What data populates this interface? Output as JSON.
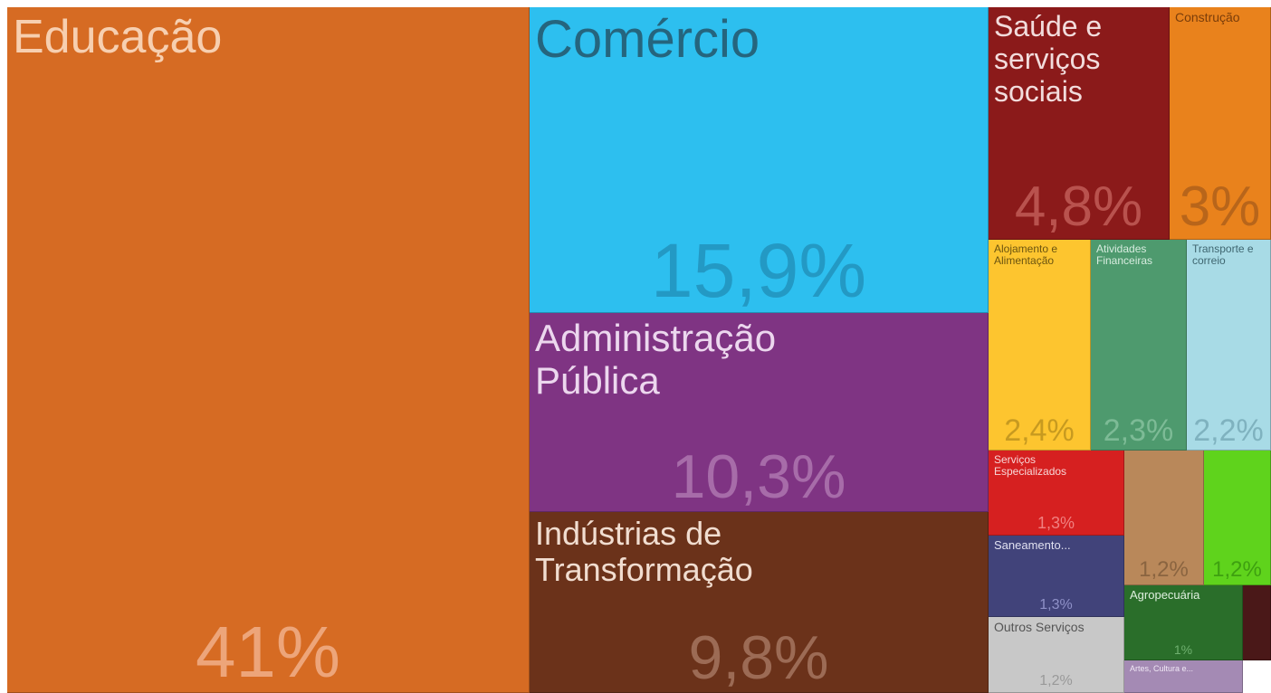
{
  "chart_data": {
    "type": "treemap",
    "items": [
      {
        "name": "Educação",
        "value": 41,
        "value_label": "41%",
        "color": "#d66b23"
      },
      {
        "name": "Comércio",
        "value": 15.9,
        "value_label": "15,9%",
        "color": "#2dbfef"
      },
      {
        "name": "Administração Pública",
        "value": 10.3,
        "value_label": "10,3%",
        "color": "#7f3483"
      },
      {
        "name": "Indústrias de Transformação",
        "value": 9.8,
        "value_label": "9,8%",
        "color": "#6b321a"
      },
      {
        "name": "Saúde e serviços sociais",
        "value": 4.8,
        "value_label": "4,8%",
        "color": "#8b1a1a"
      },
      {
        "name": "Construção",
        "value": 3,
        "value_label": "3%",
        "color": "#e9821c"
      },
      {
        "name": "Alojamento e Alimentação",
        "value": 2.4,
        "value_label": "2,4%",
        "color": "#fdc52f"
      },
      {
        "name": "Atividades Financeiras",
        "value": 2.3,
        "value_label": "2,3%",
        "color": "#4e9a6e"
      },
      {
        "name": "Transporte e correio",
        "value": 2.2,
        "value_label": "2,2%",
        "color": "#a8dbe6"
      },
      {
        "name": "Serviços Especializados",
        "value": 1.3,
        "value_label": "1,3%",
        "color": "#d62020"
      },
      {
        "name": null,
        "value": 1.2,
        "value_label": "1,2%",
        "color": "#b9885a"
      },
      {
        "name": null,
        "value": 1.2,
        "value_label": "1,2%",
        "color": "#5fd31c"
      },
      {
        "name": "Saneamento...",
        "value": 1.3,
        "value_label": "1,3%",
        "color": "#41437a"
      },
      {
        "name": "Agropecuária",
        "value": 1,
        "value_label": "1%",
        "color": "#2a6e2a"
      },
      {
        "name": null,
        "value": 0.5,
        "value_label": null,
        "color": "#4a1818"
      },
      {
        "name": "Outros Serviços",
        "value": 1.2,
        "value_label": "1,2%",
        "color": "#c8c8c8"
      },
      {
        "name": "Artes, Cultura e...",
        "value": 0.6,
        "value_label": null,
        "color": "#a48ab4"
      }
    ]
  }
}
